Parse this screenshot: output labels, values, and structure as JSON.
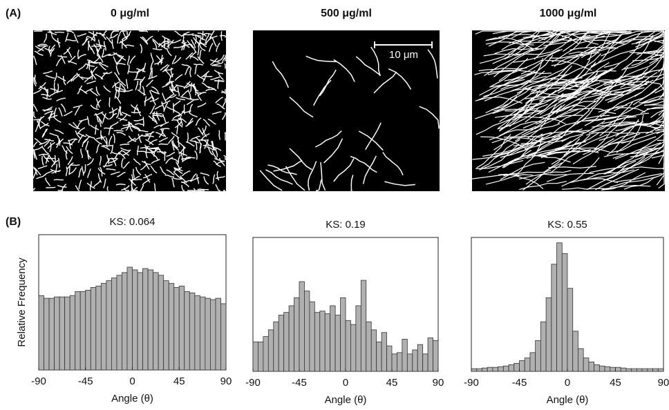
{
  "figure": {
    "panel_a_label": "(A)",
    "panel_b_label": "(B)",
    "images": [
      {
        "title": "0 μg/ml"
      },
      {
        "title": "500 μg/ml",
        "scale_bar": "10 μm"
      },
      {
        "title": "1000 μg/ml"
      }
    ]
  },
  "chart_data": [
    {
      "type": "histogram",
      "title": "KS: 0.064",
      "x_label": "Angle (θ)",
      "y_label": "Relative Frequency",
      "bins": [
        -90,
        -85,
        -80,
        -75,
        -70,
        -65,
        -60,
        -55,
        -50,
        -45,
        -40,
        -35,
        -30,
        -25,
        -20,
        -15,
        -10,
        -5,
        0,
        5,
        10,
        15,
        20,
        25,
        30,
        35,
        40,
        45,
        50,
        55,
        60,
        65,
        70,
        75,
        80,
        85,
        90
      ],
      "values": [
        0.55,
        0.53,
        0.53,
        0.54,
        0.54,
        0.54,
        0.55,
        0.58,
        0.58,
        0.59,
        0.61,
        0.62,
        0.64,
        0.66,
        0.68,
        0.7,
        0.72,
        0.76,
        0.74,
        0.72,
        0.75,
        0.74,
        0.72,
        0.7,
        0.66,
        0.64,
        0.61,
        0.62,
        0.58,
        0.57,
        0.55,
        0.54,
        0.53,
        0.52,
        0.53,
        0.49
      ],
      "color": "#b0b0b0",
      "xlim": [
        -90,
        90
      ],
      "xticks": [
        -90,
        -45,
        0,
        45,
        90
      ],
      "ylim": [
        0,
        1
      ]
    },
    {
      "type": "histogram",
      "title": "KS: 0.19",
      "x_label": "Angle (θ)",
      "bins": [
        -90,
        -85,
        -80,
        -75,
        -70,
        -65,
        -60,
        -55,
        -50,
        -45,
        -40,
        -35,
        -30,
        -25,
        -20,
        -15,
        -10,
        -5,
        0,
        5,
        10,
        15,
        20,
        25,
        30,
        35,
        40,
        45,
        50,
        55,
        60,
        65,
        70,
        75,
        80,
        85,
        90
      ],
      "values": [
        0.22,
        0.22,
        0.26,
        0.31,
        0.37,
        0.42,
        0.44,
        0.49,
        0.55,
        0.67,
        0.6,
        0.52,
        0.44,
        0.45,
        0.43,
        0.49,
        0.42,
        0.55,
        0.38,
        0.35,
        0.49,
        0.68,
        0.37,
        0.31,
        0.22,
        0.29,
        0.19,
        0.13,
        0.14,
        0.24,
        0.13,
        0.16,
        0.2,
        0.13,
        0.25,
        0.23
      ],
      "color": "#b0b0b0",
      "xlim": [
        -90,
        90
      ],
      "xticks": [
        -90,
        -45,
        0,
        45,
        90
      ],
      "ylim": [
        0,
        1
      ]
    },
    {
      "type": "histogram",
      "title": "KS: 0.55",
      "x_label": "Angle (θ)",
      "bins": [
        -90,
        -85,
        -80,
        -75,
        -70,
        -65,
        -60,
        -55,
        -50,
        -45,
        -40,
        -35,
        -30,
        -25,
        -20,
        -15,
        -10,
        -5,
        0,
        5,
        10,
        15,
        20,
        25,
        30,
        35,
        40,
        45,
        50,
        55,
        60,
        65,
        70,
        75,
        80,
        85,
        90
      ],
      "values": [
        0.02,
        0.02,
        0.025,
        0.03,
        0.03,
        0.035,
        0.04,
        0.05,
        0.06,
        0.08,
        0.1,
        0.14,
        0.23,
        0.37,
        0.55,
        0.8,
        0.96,
        0.88,
        0.62,
        0.3,
        0.17,
        0.1,
        0.07,
        0.05,
        0.04,
        0.035,
        0.03,
        0.03,
        0.025,
        0.02,
        0.02,
        0.02,
        0.02,
        0.02,
        0.02,
        0.02
      ],
      "color": "#b0b0b0",
      "xlim": [
        -90,
        90
      ],
      "xticks": [
        -90,
        -45,
        0,
        45,
        90
      ],
      "ylim": [
        0,
        1
      ]
    }
  ]
}
